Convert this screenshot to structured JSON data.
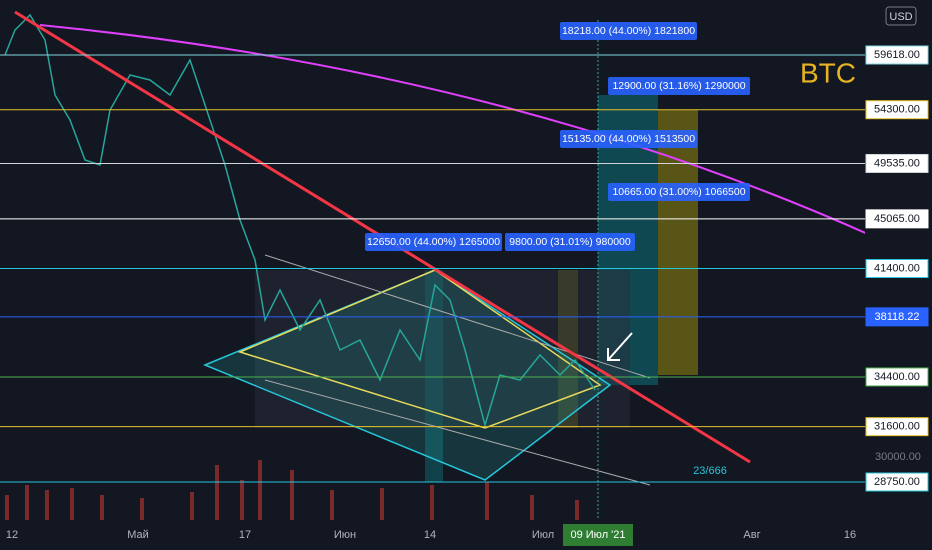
{
  "symbol": "BTC",
  "currency": "USD",
  "counter": "23/666",
  "price_levels": [
    {
      "value": 59618,
      "label": "59618.00",
      "color": "#7fd8e0",
      "tag_bg": "#ffffff",
      "tag_fg": "#131722"
    },
    {
      "value": 54300,
      "label": "54300.00",
      "color": "#e6c229",
      "tag_bg": "#ffffff",
      "tag_fg": "#131722"
    },
    {
      "value": 49535,
      "label": "49535.00",
      "color": "#d1d4dc",
      "tag_bg": "#ffffff",
      "tag_fg": "#131722"
    },
    {
      "value": 45065,
      "label": "45065.00",
      "color": "#ffffff",
      "tag_bg": "#ffffff",
      "tag_fg": "#131722"
    },
    {
      "value": 41400,
      "label": "41400.00",
      "color": "#26c6da",
      "tag_bg": "#ffffff",
      "tag_fg": "#131722"
    },
    {
      "value": 38118.22,
      "label": "38118.22",
      "color": "#2962ff",
      "tag_bg": "#2962ff",
      "tag_fg": "#ffffff"
    },
    {
      "value": 34400,
      "label": "34400.00",
      "color": "#4caf50",
      "tag_bg": "#ffffff",
      "tag_fg": "#131722"
    },
    {
      "value": 31600,
      "label": "31600.00",
      "color": "#e6c229",
      "tag_bg": "#ffffff",
      "tag_fg": "#131722"
    },
    {
      "value": 28750,
      "label": "28750.00",
      "color": "#26c6da",
      "tag_bg": "#ffffff",
      "tag_fg": "#131722"
    }
  ],
  "axis_prices": [
    {
      "value": 30000,
      "label": "30000.00"
    }
  ],
  "annotations": [
    "18218.00 (44.00%) 1821800",
    "12900.00 (31.16%) 1290000",
    "15135.00 (44.00%) 1513500",
    "10665.00 (31.00%) 1066500",
    "12650.00 (44.00%) 1265000",
    "9800.00 (31.01%) 980000"
  ],
  "x_labels": [
    "12",
    "Май",
    "17",
    "Июн",
    "14",
    "Июл",
    "Авг",
    "16"
  ],
  "current_date": "09 Июл '21"
}
